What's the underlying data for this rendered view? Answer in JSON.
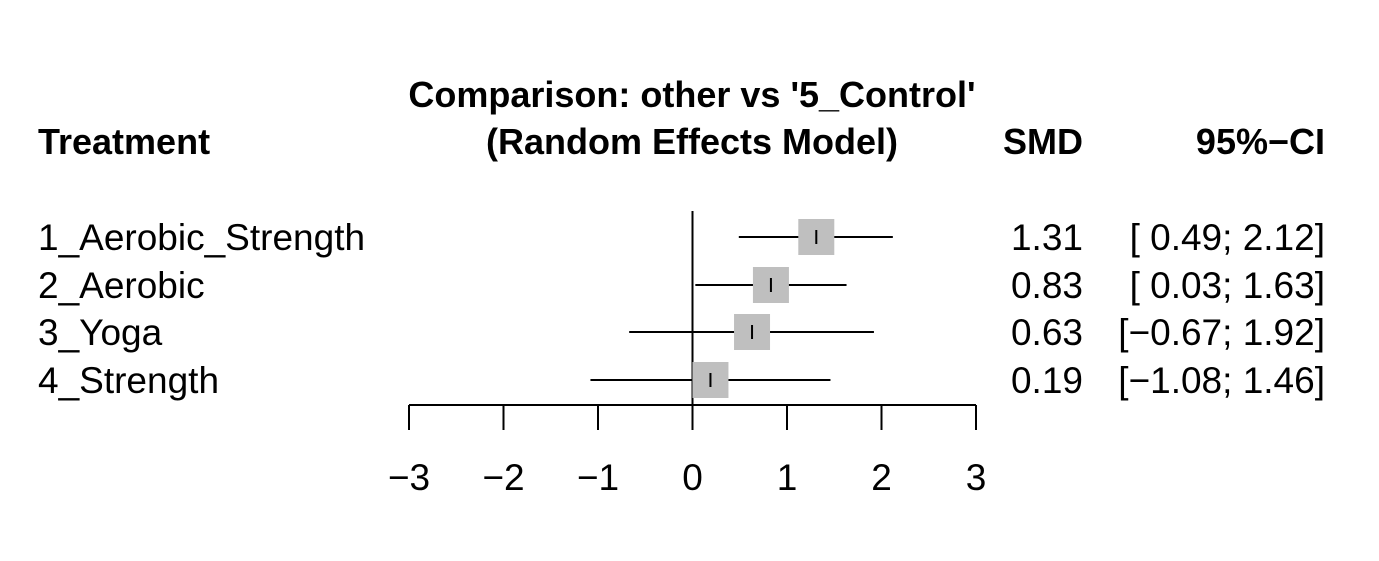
{
  "chart_data": {
    "type": "forest",
    "title_line1": "Comparison: other vs '5_Control'",
    "title_line2": "(Random Effects Model)",
    "col_treatment": "Treatment",
    "col_smd": "SMD",
    "col_ci": "95%−CI",
    "xlim": [
      -3,
      3
    ],
    "ticks": [
      {
        "value": -3,
        "label": "−3"
      },
      {
        "value": -2,
        "label": "−2"
      },
      {
        "value": -1,
        "label": "−1"
      },
      {
        "value": 0,
        "label": "0"
      },
      {
        "value": 1,
        "label": "1"
      },
      {
        "value": 2,
        "label": "2"
      },
      {
        "value": 3,
        "label": "3"
      }
    ],
    "reference_line": 0,
    "marker_color": "#bfbfbf",
    "rows": [
      {
        "treatment": "1_Aerobic_Strength",
        "smd": 1.31,
        "lower": 0.49,
        "upper": 2.12,
        "smd_text": "1.31",
        "ci_text": "[ 0.49; 2.12]"
      },
      {
        "treatment": "2_Aerobic",
        "smd": 0.83,
        "lower": 0.03,
        "upper": 1.63,
        "smd_text": "0.83",
        "ci_text": "[ 0.03; 1.63]"
      },
      {
        "treatment": "3_Yoga",
        "smd": 0.63,
        "lower": -0.67,
        "upper": 1.92,
        "smd_text": "0.63",
        "ci_text": "[−0.67; 1.92]"
      },
      {
        "treatment": "4_Strength",
        "smd": 0.19,
        "lower": -1.08,
        "upper": 1.46,
        "smd_text": "0.19",
        "ci_text": "[−1.08; 1.46]"
      }
    ]
  }
}
